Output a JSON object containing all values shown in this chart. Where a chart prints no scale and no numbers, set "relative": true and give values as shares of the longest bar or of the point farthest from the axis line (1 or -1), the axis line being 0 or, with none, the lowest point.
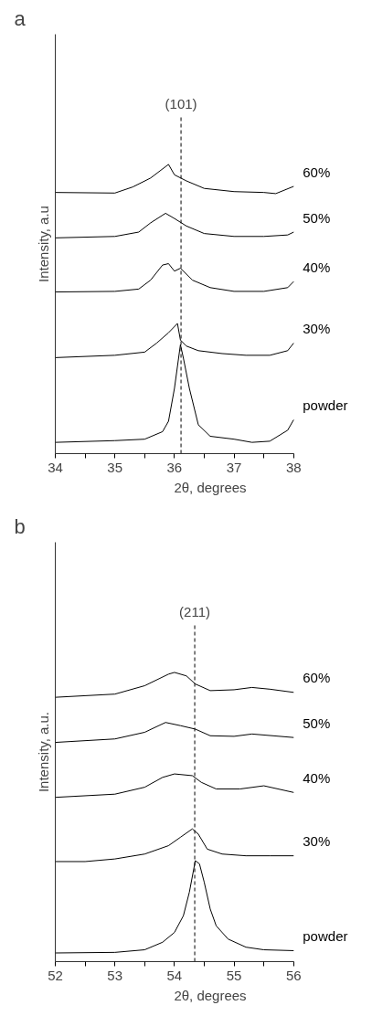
{
  "chart_data": [
    {
      "type": "line",
      "title": "a",
      "xlabel": "2θ, degrees",
      "ylabel": "Intensity, a.u",
      "relative": true,
      "xlim": [
        34,
        38
      ],
      "annotations": [
        "(101)"
      ],
      "xticks": [
        34,
        {
          "value": 34.5,
          "label": null
        },
        35,
        {
          "value": 35.5,
          "label": null
        },
        36,
        {
          "value": 36.5,
          "label": null
        },
        37,
        {
          "value": 37.5,
          "label": null
        },
        38
      ],
      "ref_lines": [
        {
          "axis": "x",
          "value": 36.11,
          "line_style": "dashed"
        }
      ],
      "series": [
        {
          "name": "powder",
          "color": "#000000",
          "x": [
            34,
            35,
            35.5,
            35.8,
            35.9,
            36.0,
            36.1,
            36.15,
            36.25,
            36.4,
            36.6,
            37,
            37.3,
            37.6,
            37.9,
            38
          ],
          "values": [
            0.039,
            0.045,
            0.05,
            0.076,
            0.112,
            0.226,
            0.377,
            0.33,
            0.226,
            0.1,
            0.06,
            0.05,
            0.039,
            0.043,
            0.081,
            0.117
          ]
        },
        {
          "name": "30%",
          "color": "#000000",
          "x": [
            34,
            35,
            35.5,
            35.7,
            35.9,
            36.05,
            36.1,
            36.2,
            36.4,
            36.8,
            37.2,
            37.6,
            37.9,
            38
          ],
          "values": [
            0.332,
            0.34,
            0.351,
            0.382,
            0.418,
            0.45,
            0.393,
            0.372,
            0.356,
            0.346,
            0.34,
            0.34,
            0.356,
            0.382
          ]
        },
        {
          "name": "40%",
          "color": "#000000",
          "x": [
            34,
            35,
            35.4,
            35.6,
            35.8,
            35.9,
            36.0,
            36.1,
            36.3,
            36.6,
            37,
            37.5,
            37.9,
            38
          ],
          "values": [
            0.559,
            0.561,
            0.569,
            0.6,
            0.652,
            0.657,
            0.631,
            0.641,
            0.6,
            0.574,
            0.561,
            0.561,
            0.574,
            0.595
          ]
        },
        {
          "name": "50%",
          "color": "#000000",
          "x": [
            34,
            35,
            35.4,
            35.6,
            35.85,
            36.0,
            36.2,
            36.5,
            37,
            37.5,
            37.9,
            38
          ],
          "values": [
            0.746,
            0.751,
            0.766,
            0.798,
            0.831,
            0.813,
            0.787,
            0.761,
            0.751,
            0.751,
            0.756,
            0.766
          ]
        },
        {
          "name": "60%",
          "color": "#000000",
          "x": [
            34,
            35,
            35.3,
            35.6,
            35.9,
            36.0,
            36.2,
            36.5,
            37,
            37.5,
            37.7,
            38
          ],
          "values": [
            0.903,
            0.901,
            0.922,
            0.953,
            1.0,
            0.964,
            0.943,
            0.917,
            0.906,
            0.903,
            0.899,
            0.924
          ]
        }
      ]
    },
    {
      "type": "line",
      "title": "b",
      "xlabel": "2θ, degrees",
      "ylabel": "Intensity, a.u.",
      "relative": true,
      "xlim": [
        52,
        56
      ],
      "annotations": [
        "(211)"
      ],
      "xticks": [
        52,
        {
          "value": 52.5,
          "label": null
        },
        53,
        {
          "value": 53.5,
          "label": null
        },
        54,
        {
          "value": 54.5,
          "label": null
        },
        55,
        {
          "value": 55.5,
          "label": null
        },
        56
      ],
      "ref_lines": [
        {
          "axis": "x",
          "value": 54.34,
          "line_style": "dashed"
        }
      ],
      "series": [
        {
          "name": "powder",
          "color": "#000000",
          "x": [
            52,
            53,
            53.5,
            53.8,
            54.0,
            54.15,
            54.25,
            54.35,
            54.42,
            54.5,
            54.6,
            54.7,
            54.9,
            55.2,
            55.5,
            56
          ],
          "values": [
            0.03,
            0.032,
            0.041,
            0.067,
            0.101,
            0.159,
            0.24,
            0.349,
            0.338,
            0.274,
            0.182,
            0.124,
            0.078,
            0.05,
            0.041,
            0.038
          ]
        },
        {
          "name": "30%",
          "color": "#000000",
          "x": [
            52,
            52.5,
            53,
            53.5,
            53.9,
            54.1,
            54.3,
            54.4,
            54.55,
            54.8,
            55.2,
            55.6,
            56
          ],
          "values": [
            0.346,
            0.346,
            0.355,
            0.372,
            0.401,
            0.43,
            0.459,
            0.441,
            0.389,
            0.372,
            0.366,
            0.366,
            0.366
          ]
        },
        {
          "name": "40%",
          "color": "#000000",
          "x": [
            52,
            53,
            53.5,
            53.8,
            54.0,
            54.3,
            54.45,
            54.7,
            55.1,
            55.5,
            56
          ],
          "values": [
            0.568,
            0.579,
            0.603,
            0.637,
            0.649,
            0.643,
            0.62,
            0.597,
            0.597,
            0.608,
            0.585
          ]
        },
        {
          "name": "50%",
          "color": "#000000",
          "x": [
            52,
            53,
            53.5,
            53.85,
            54.1,
            54.35,
            54.6,
            55,
            55.3,
            56
          ],
          "values": [
            0.758,
            0.77,
            0.793,
            0.827,
            0.816,
            0.804,
            0.781,
            0.779,
            0.787,
            0.775
          ]
        },
        {
          "name": "60%",
          "color": "#000000",
          "x": [
            52,
            53,
            53.5,
            53.9,
            54.0,
            54.2,
            54.35,
            54.6,
            55,
            55.3,
            55.6,
            56
          ],
          "values": [
            0.914,
            0.925,
            0.954,
            0.994,
            1.0,
            0.988,
            0.96,
            0.937,
            0.94,
            0.948,
            0.942,
            0.931
          ]
        }
      ]
    }
  ]
}
